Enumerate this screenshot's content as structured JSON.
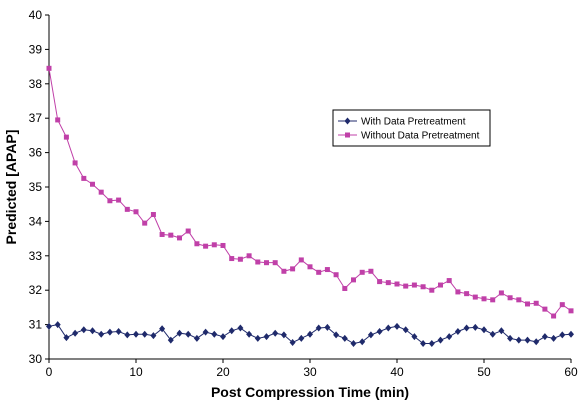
{
  "chart_data": {
    "type": "line",
    "xlabel": "Post Compression Time (min)",
    "ylabel": "Predicted [APAP]",
    "xlim": [
      0,
      60
    ],
    "ylim": [
      30,
      40
    ],
    "xticks": [
      0,
      10,
      20,
      30,
      40,
      50,
      60
    ],
    "yticks": [
      30,
      31,
      32,
      33,
      34,
      35,
      36,
      37,
      38,
      39,
      40
    ],
    "grid": false,
    "legend_position": "upper-right",
    "x": [
      0,
      1,
      2,
      3,
      4,
      5,
      6,
      7,
      8,
      9,
      10,
      11,
      12,
      13,
      14,
      15,
      16,
      17,
      18,
      19,
      20,
      21,
      22,
      23,
      24,
      25,
      26,
      27,
      28,
      29,
      30,
      31,
      32,
      33,
      34,
      35,
      36,
      37,
      38,
      39,
      40,
      41,
      42,
      43,
      44,
      45,
      46,
      47,
      48,
      49,
      50,
      51,
      52,
      53,
      54,
      55,
      56,
      57,
      58,
      59,
      60
    ],
    "series": [
      {
        "name": "With Data Pretreatment",
        "color": "#1f2a6b",
        "marker": "diamond",
        "values": [
          30.95,
          31.0,
          30.62,
          30.75,
          30.85,
          30.82,
          30.72,
          30.78,
          30.8,
          30.7,
          30.72,
          30.72,
          30.68,
          30.88,
          30.55,
          30.75,
          30.72,
          30.6,
          30.78,
          30.72,
          30.65,
          30.82,
          30.9,
          30.72,
          30.6,
          30.65,
          30.75,
          30.7,
          30.48,
          30.6,
          30.72,
          30.9,
          30.92,
          30.7,
          30.6,
          30.45,
          30.5,
          30.7,
          30.8,
          30.9,
          30.95,
          30.85,
          30.65,
          30.45,
          30.45,
          30.55,
          30.65,
          30.8,
          30.9,
          30.92,
          30.85,
          30.72,
          30.82,
          30.6,
          30.55,
          30.55,
          30.5,
          30.65,
          30.6,
          30.7,
          30.72
        ]
      },
      {
        "name": "Without Data Pretreatment",
        "color": "#c040a8",
        "marker": "square",
        "values": [
          38.45,
          36.95,
          36.45,
          35.7,
          35.25,
          35.08,
          34.85,
          34.6,
          34.62,
          34.35,
          34.28,
          33.95,
          34.2,
          33.62,
          33.6,
          33.52,
          33.72,
          33.35,
          33.28,
          33.32,
          33.3,
          32.92,
          32.9,
          33.0,
          32.82,
          32.8,
          32.8,
          32.55,
          32.62,
          32.88,
          32.68,
          32.52,
          32.6,
          32.45,
          32.05,
          32.3,
          32.52,
          32.55,
          32.25,
          32.22,
          32.18,
          32.12,
          32.15,
          32.1,
          32.0,
          32.15,
          32.28,
          31.95,
          31.9,
          31.8,
          31.75,
          31.72,
          31.92,
          31.78,
          31.72,
          31.6,
          31.62,
          31.45,
          31.25,
          31.58,
          31.4
        ]
      }
    ]
  }
}
